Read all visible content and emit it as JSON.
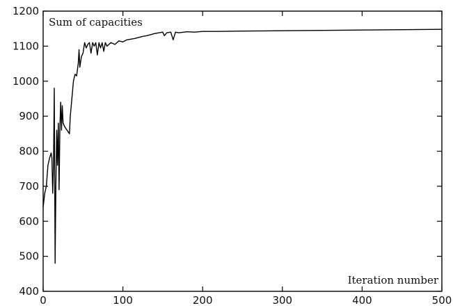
{
  "chart_data": {
    "type": "line",
    "title": "",
    "ylabel": "Sum of capacities",
    "xlabel": "Iteration number",
    "xlim": [
      0,
      500
    ],
    "ylim": [
      400,
      1200
    ],
    "x_ticks": [
      0,
      100,
      200,
      300,
      400,
      500
    ],
    "y_ticks": [
      400,
      500,
      600,
      700,
      800,
      900,
      1000,
      1100,
      1200
    ],
    "grid": false,
    "series": [
      {
        "color": "#000000",
        "points": [
          [
            0,
            640
          ],
          [
            2,
            680
          ],
          [
            4,
            700
          ],
          [
            6,
            760
          ],
          [
            8,
            780
          ],
          [
            10,
            795
          ],
          [
            11,
            780
          ],
          [
            12,
            680
          ],
          [
            13,
            760
          ],
          [
            14,
            980
          ],
          [
            15,
            480
          ],
          [
            16,
            700
          ],
          [
            17,
            860
          ],
          [
            18,
            760
          ],
          [
            19,
            880
          ],
          [
            20,
            690
          ],
          [
            21,
            870
          ],
          [
            22,
            940
          ],
          [
            23,
            860
          ],
          [
            24,
            930
          ],
          [
            25,
            880
          ],
          [
            27,
            870
          ],
          [
            30,
            860
          ],
          [
            33,
            850
          ],
          [
            34,
            900
          ],
          [
            36,
            950
          ],
          [
            38,
            1000
          ],
          [
            40,
            1020
          ],
          [
            42,
            1015
          ],
          [
            44,
            1050
          ],
          [
            45,
            1090
          ],
          [
            46,
            1040
          ],
          [
            48,
            1070
          ],
          [
            50,
            1080
          ],
          [
            52,
            1110
          ],
          [
            54,
            1095
          ],
          [
            56,
            1105
          ],
          [
            58,
            1110
          ],
          [
            60,
            1080
          ],
          [
            62,
            1110
          ],
          [
            64,
            1100
          ],
          [
            66,
            1110
          ],
          [
            68,
            1075
          ],
          [
            70,
            1110
          ],
          [
            72,
            1095
          ],
          [
            74,
            1110
          ],
          [
            76,
            1085
          ],
          [
            78,
            1110
          ],
          [
            80,
            1100
          ],
          [
            85,
            1110
          ],
          [
            90,
            1105
          ],
          [
            95,
            1115
          ],
          [
            100,
            1112
          ],
          [
            105,
            1118
          ],
          [
            110,
            1120
          ],
          [
            115,
            1122
          ],
          [
            120,
            1125
          ],
          [
            125,
            1128
          ],
          [
            130,
            1130
          ],
          [
            135,
            1133
          ],
          [
            140,
            1136
          ],
          [
            145,
            1138
          ],
          [
            150,
            1140
          ],
          [
            152,
            1130
          ],
          [
            155,
            1138
          ],
          [
            160,
            1140
          ],
          [
            163,
            1118
          ],
          [
            166,
            1140
          ],
          [
            170,
            1138
          ],
          [
            180,
            1141
          ],
          [
            190,
            1140
          ],
          [
            200,
            1142
          ],
          [
            220,
            1142
          ],
          [
            250,
            1143
          ],
          [
            300,
            1144
          ],
          [
            350,
            1145
          ],
          [
            400,
            1146
          ],
          [
            450,
            1147
          ],
          [
            500,
            1148
          ]
        ]
      }
    ]
  }
}
